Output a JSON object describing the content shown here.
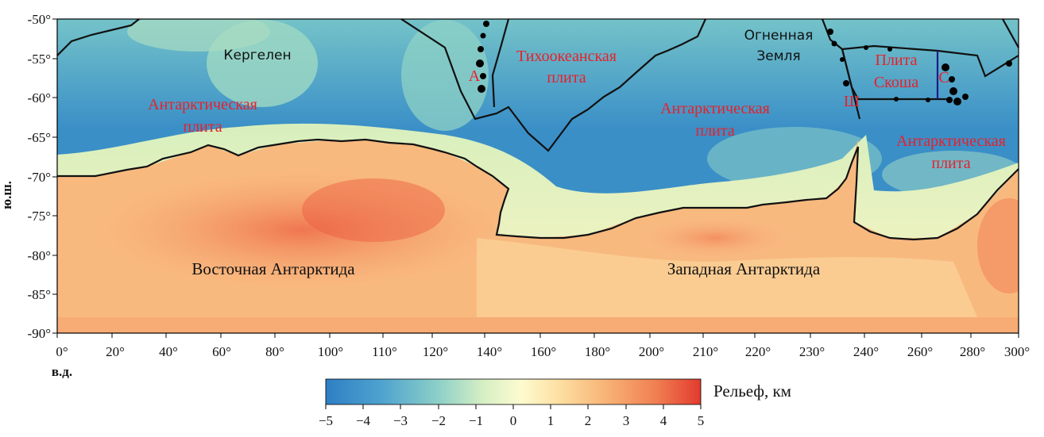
{
  "map": {
    "lat_axis": {
      "title": "ю.ш.",
      "ticks": [
        "-50°",
        "-55°",
        "-60°",
        "-65°",
        "-70°",
        "-75°",
        "-80°",
        "-85°",
        "-90°"
      ],
      "range": [
        -90,
        -50
      ]
    },
    "lon_axis": {
      "title": "в.д.",
      "ticks": [
        "0°",
        "20°",
        "40°",
        "60°",
        "80°",
        "100°",
        "110°",
        "120°",
        "140°",
        "160°",
        "180°",
        "200°",
        "210°",
        "220°",
        "230°",
        "240°",
        "260°",
        "280°",
        "300°"
      ],
      "range": [
        0,
        300
      ]
    },
    "labels": {
      "kerguelen": "Кергелен",
      "fire_land_1": "Огненная",
      "fire_land_2": "Земля",
      "ant_plate_left_1": "Антарктическая",
      "ant_plate_left_2": "плита",
      "pacific_1": "Тихоокеанская",
      "pacific_2": "плита",
      "ant_plate_mid_1": "Антарктическая",
      "ant_plate_mid_2": "плита",
      "scotia_1": "Плита",
      "scotia_2": "Скоша",
      "ant_plate_right_1": "Антарктическая",
      "ant_plate_right_2": "плита",
      "letter_a": "А",
      "letter_sh": "Ш",
      "letter_s": "С",
      "east_ant": "Восточная Антарктида",
      "west_ant": "Западная Антарктида"
    },
    "colorbar": {
      "title": "Рельеф, км",
      "ticks": [
        "−5",
        "−4",
        "−3",
        "−2",
        "−1",
        "0",
        "1",
        "2",
        "3",
        "4",
        "5"
      ],
      "range": [
        -5,
        5
      ],
      "colors": [
        "#2e7fc4",
        "#4fa3cf",
        "#8dd0c8",
        "#d6efc4",
        "#fdfbd0",
        "#fde0a3",
        "#f8b275",
        "#f07f52",
        "#e33b2f"
      ]
    }
  }
}
